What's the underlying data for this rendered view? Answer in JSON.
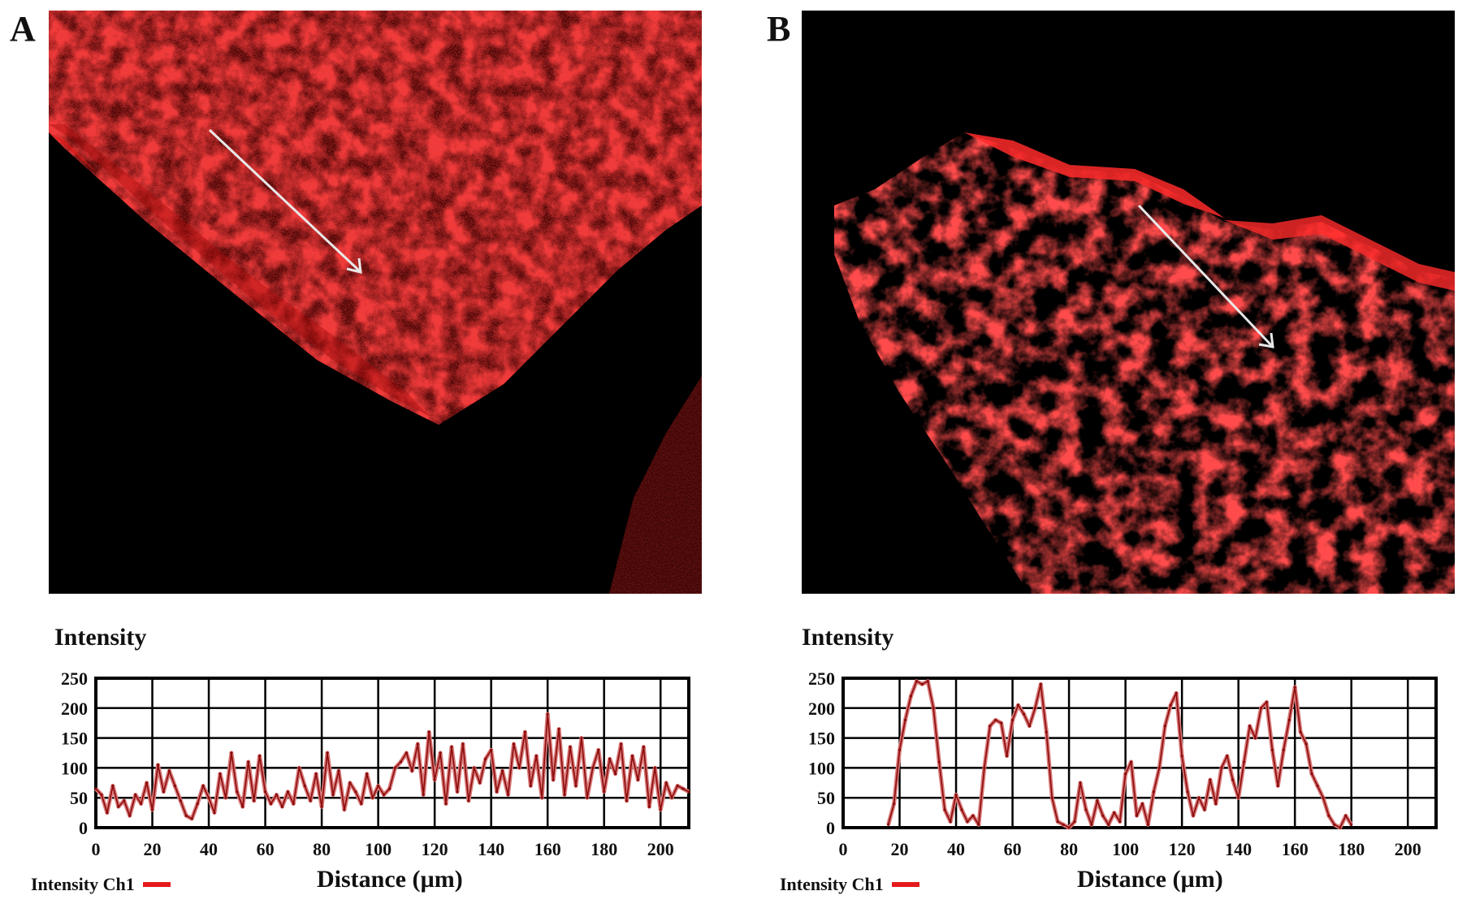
{
  "panels": [
    {
      "letter": "A"
    },
    {
      "letter": "B"
    }
  ],
  "colors": {
    "tissue": "#e01414",
    "arrow": "#e8e8e8",
    "line_light": "#d97878",
    "line_dark": "#8b0b0b",
    "legend_swatch": "#e41a1c"
  },
  "chart_data": [
    {
      "type": "line",
      "title": "Intensity",
      "xlabel": "Distance (µm)",
      "ylabel": "",
      "xlim": [
        0,
        210
      ],
      "ylim": [
        0,
        250
      ],
      "xticks": [
        "0",
        "20",
        "40",
        "60",
        "80",
        "100",
        "120",
        "140",
        "160",
        "180",
        "200"
      ],
      "yticks": [
        "0",
        "50",
        "100",
        "150",
        "200",
        "250"
      ],
      "grid": true,
      "legend": "Intensity Ch1",
      "series": [
        {
          "x": [
            0,
            2,
            4,
            6,
            8,
            10,
            12,
            14,
            16,
            18,
            20,
            22,
            24,
            26,
            28,
            30,
            32,
            34,
            36,
            38,
            40,
            42,
            44,
            46,
            48,
            50,
            52,
            54,
            56,
            58,
            60,
            62,
            64,
            66,
            68,
            70,
            72,
            74,
            76,
            78,
            80,
            82,
            84,
            86,
            88,
            90,
            92,
            94,
            96,
            98,
            100,
            102,
            104,
            106,
            108,
            110,
            112,
            114,
            116,
            118,
            120,
            122,
            124,
            126,
            128,
            130,
            132,
            134,
            136,
            138,
            140,
            142,
            144,
            146,
            148,
            150,
            152,
            154,
            156,
            158,
            160,
            162,
            164,
            166,
            168,
            170,
            172,
            174,
            176,
            178,
            180,
            182,
            184,
            186,
            188,
            190,
            192,
            194,
            196,
            198,
            200,
            202,
            204,
            206,
            208,
            210
          ],
          "y": [
            65,
            55,
            25,
            70,
            35,
            45,
            20,
            55,
            40,
            75,
            30,
            105,
            60,
            95,
            70,
            45,
            20,
            15,
            40,
            70,
            50,
            25,
            90,
            50,
            125,
            60,
            35,
            110,
            45,
            120,
            60,
            40,
            55,
            35,
            60,
            40,
            100,
            70,
            45,
            90,
            35,
            125,
            55,
            95,
            30,
            75,
            60,
            40,
            90,
            50,
            70,
            55,
            65,
            100,
            110,
            125,
            95,
            140,
            55,
            160,
            80,
            125,
            40,
            135,
            60,
            140,
            45,
            100,
            75,
            115,
            130,
            60,
            95,
            55,
            140,
            100,
            160,
            70,
            120,
            50,
            190,
            80,
            165,
            55,
            135,
            70,
            150,
            50,
            100,
            130,
            60,
            115,
            90,
            140,
            45,
            120,
            80,
            135,
            35,
            100,
            30,
            75,
            50,
            70,
            65,
            60
          ]
        }
      ]
    },
    {
      "type": "line",
      "title": "Intensity",
      "xlabel": "Distance (µm)",
      "ylabel": "",
      "xlim": [
        0,
        210
      ],
      "ylim": [
        0,
        250
      ],
      "xticks": [
        "0",
        "20",
        "40",
        "60",
        "80",
        "100",
        "120",
        "140",
        "160",
        "180",
        "200"
      ],
      "yticks": [
        "0",
        "50",
        "100",
        "150",
        "200",
        "250"
      ],
      "grid": true,
      "legend": "Intensity Ch1",
      "series": [
        {
          "x": [
            16,
            18,
            20,
            22,
            24,
            26,
            28,
            30,
            32,
            34,
            36,
            38,
            40,
            42,
            44,
            46,
            48,
            50,
            52,
            54,
            56,
            58,
            60,
            62,
            64,
            66,
            68,
            70,
            72,
            74,
            76,
            78,
            80,
            82,
            84,
            86,
            88,
            90,
            92,
            94,
            96,
            98,
            100,
            102,
            104,
            106,
            108,
            110,
            112,
            114,
            116,
            118,
            120,
            122,
            124,
            126,
            128,
            130,
            132,
            134,
            136,
            138,
            140,
            142,
            144,
            146,
            148,
            150,
            152,
            154,
            156,
            158,
            160,
            162,
            164,
            166,
            168,
            170,
            172,
            174,
            176,
            178,
            180
          ],
          "y": [
            5,
            40,
            130,
            180,
            220,
            245,
            240,
            245,
            200,
            110,
            30,
            10,
            55,
            30,
            10,
            20,
            5,
            100,
            170,
            180,
            175,
            120,
            180,
            205,
            190,
            170,
            200,
            240,
            160,
            50,
            10,
            5,
            0,
            10,
            75,
            30,
            5,
            45,
            20,
            5,
            25,
            10,
            90,
            110,
            20,
            40,
            5,
            60,
            100,
            170,
            205,
            225,
            120,
            60,
            20,
            50,
            30,
            80,
            40,
            100,
            120,
            80,
            50,
            110,
            170,
            150,
            200,
            210,
            130,
            70,
            130,
            180,
            235,
            160,
            140,
            90,
            70,
            50,
            20,
            5,
            0,
            20,
            5
          ]
        }
      ]
    }
  ]
}
